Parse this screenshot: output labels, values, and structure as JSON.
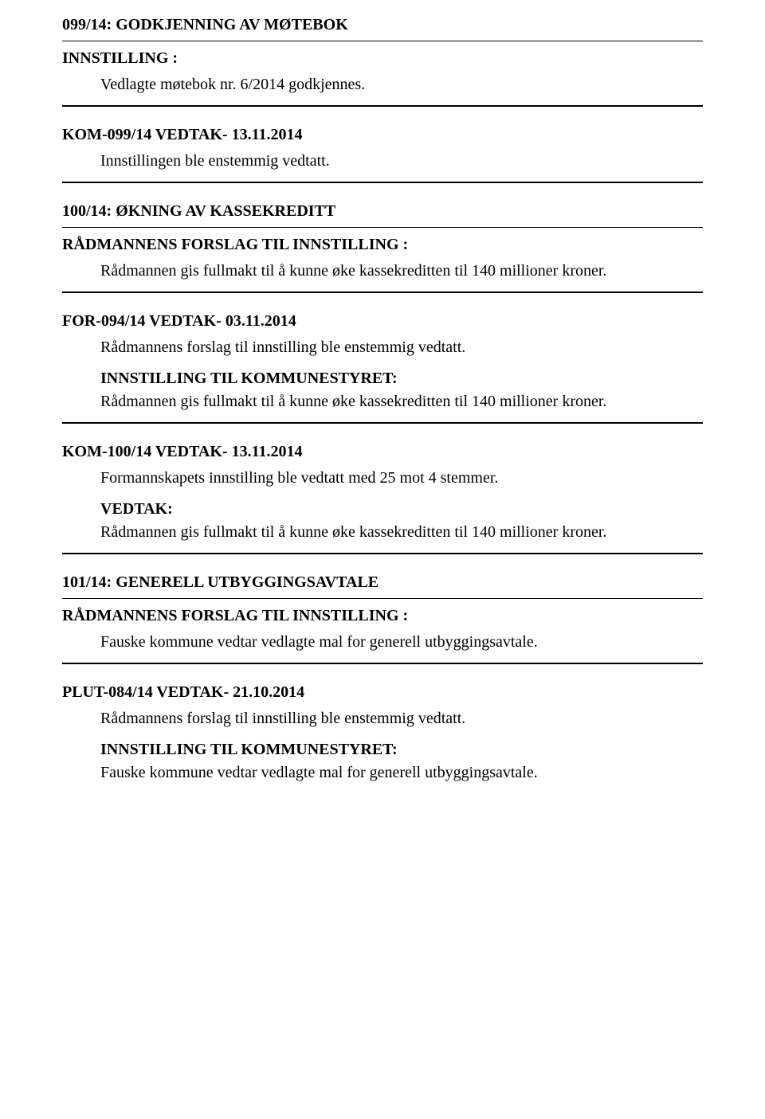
{
  "s099": {
    "title": "099/14: GODKJENNING AV MØTEBOK",
    "innstilling_label": "INNSTILLING :",
    "innstilling_text": "Vedlagte møtebok nr. 6/2014 godkjennes.",
    "kom_label": "KOM-099/14 VEDTAK-  13.11.2014",
    "kom_text": "Innstillingen ble enstemmig vedtatt."
  },
  "s100": {
    "title": "100/14: ØKNING AV KASSEKREDITT",
    "forslag_label": "RÅDMANNENS FORSLAG TIL INNSTILLING :",
    "forslag_text": "Rådmannen gis fullmakt til å kunne øke kassekreditten til 140 millioner kroner.",
    "for_label": "FOR-094/14 VEDTAK-  03.11.2014",
    "for_text": "Rådmannens forslag til innstilling ble enstemmig vedtatt.",
    "innst_kom_label": "INNSTILLING TIL KOMMUNESTYRET:",
    "innst_kom_text": "Rådmannen gis fullmakt til å kunne øke kassekreditten til 140 millioner kroner.",
    "kom_label": "KOM-100/14 VEDTAK-  13.11.2014",
    "kom_text1": "Formannskapets innstilling ble vedtatt med 25 mot 4 stemmer.",
    "vedtak_label": "VEDTAK:",
    "vedtak_text": "Rådmannen gis fullmakt til å kunne øke kassekreditten til 140 millioner kroner."
  },
  "s101": {
    "title": "101/14: GENERELL UTBYGGINGSAVTALE",
    "forslag_label": "RÅDMANNENS FORSLAG TIL INNSTILLING :",
    "forslag_text": "Fauske kommune vedtar vedlagte mal for generell utbyggingsavtale.",
    "plut_label": "PLUT-084/14 VEDTAK-  21.10.2014",
    "plut_text": "Rådmannens forslag til innstilling ble enstemmig vedtatt.",
    "innst_kom_label": "INNSTILLING TIL KOMMUNESTYRET:",
    "innst_kom_text": "Fauske kommune vedtar vedlagte mal for generell utbyggingsavtale."
  }
}
